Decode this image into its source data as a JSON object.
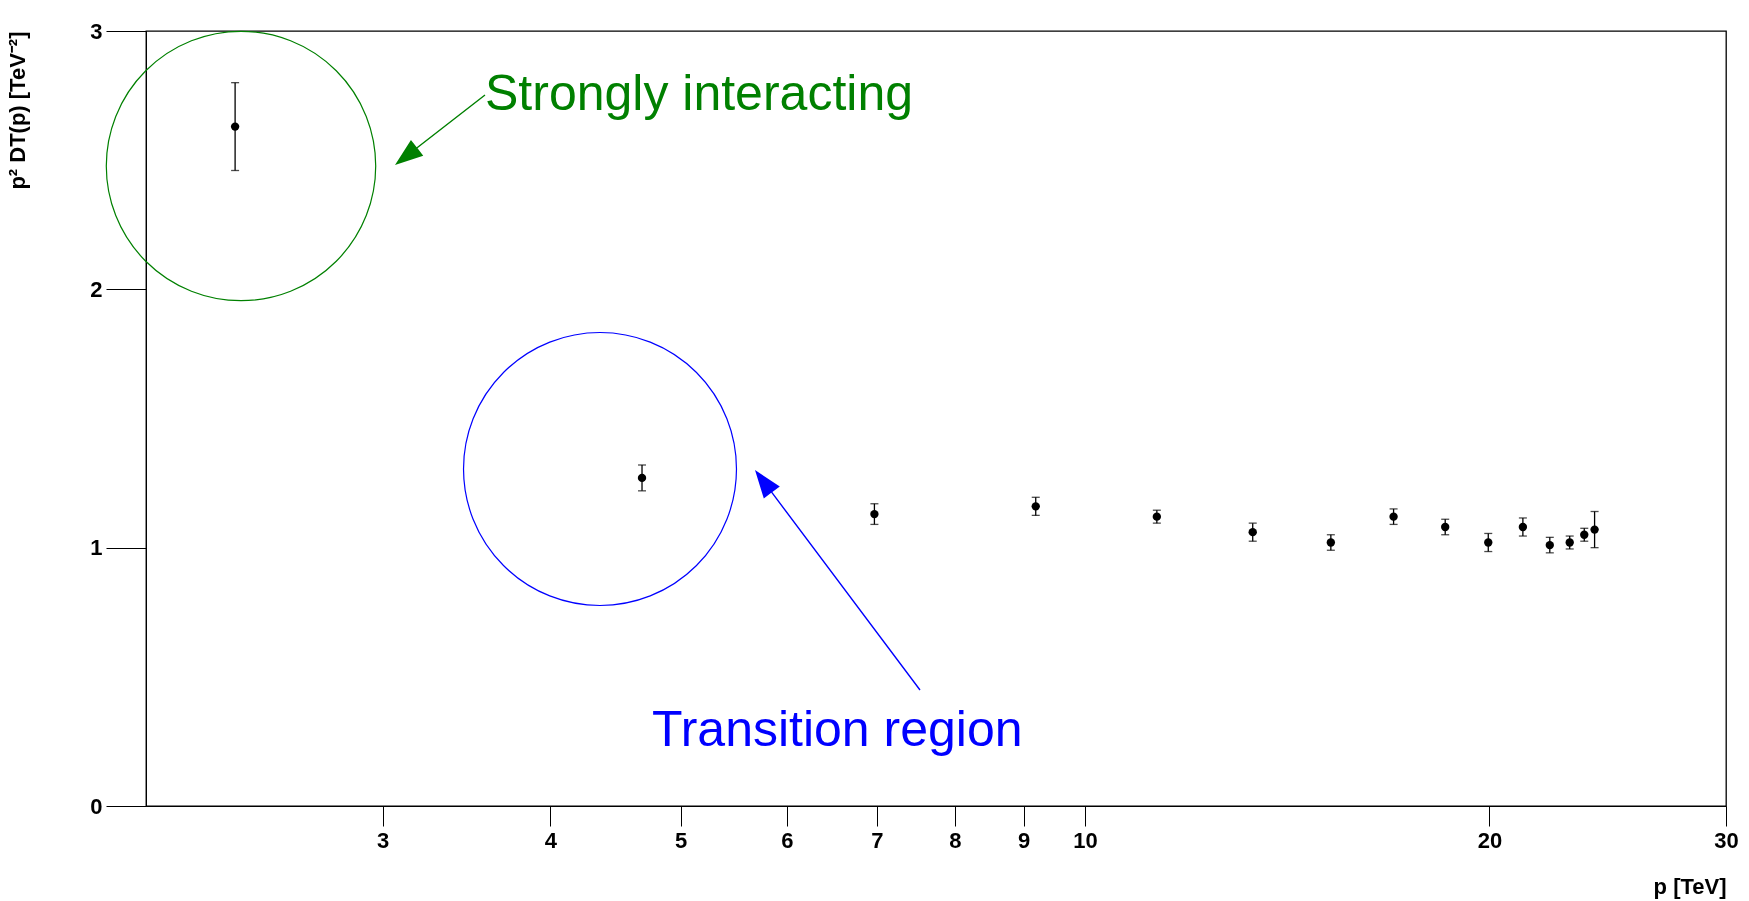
{
  "chart_data": {
    "type": "scatter",
    "xlabel": "p [TeV]",
    "ylabel": "p² DT(p) [TeV⁻²]",
    "log": "x",
    "xlim": [
      2,
      30
    ],
    "ylim": [
      0,
      3
    ],
    "xticks": [
      3,
      4,
      5,
      6,
      7,
      8,
      9,
      10,
      20,
      30
    ],
    "yticks": [
      0,
      1,
      2,
      3
    ],
    "grid": false,
    "marker": "circle",
    "series": [
      {
        "color": "#000000",
        "x": [
          2.33,
          4.68,
          6.97,
          9.19,
          11.31,
          13.33,
          15.24,
          16.97,
          18.54,
          19.96,
          21.18,
          22.18,
          22.95,
          23.53,
          23.95
        ],
        "values": [
          2.63,
          1.27,
          1.13,
          1.16,
          1.12,
          1.06,
          1.02,
          1.12,
          1.08,
          1.02,
          1.08,
          1.01,
          1.02,
          1.05,
          1.07
        ],
        "errors": [
          0.17,
          0.05,
          0.04,
          0.035,
          0.025,
          0.035,
          0.03,
          0.03,
          0.03,
          0.035,
          0.035,
          0.03,
          0.025,
          0.025,
          0.07
        ]
      }
    ],
    "annotations": [
      "Strongly interacting",
      "Transition region"
    ]
  }
}
